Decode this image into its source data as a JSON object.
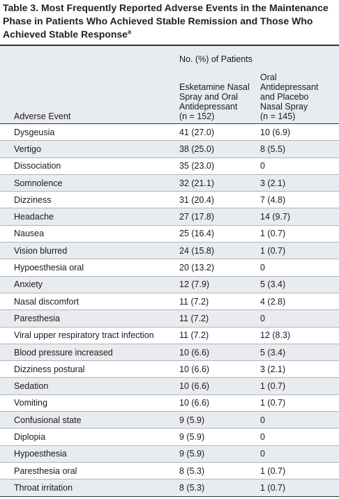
{
  "title": {
    "text": "Table 3. Most Frequently Reported Adverse Events in the Maintenance Phase in Patients Who Achieved Stable Remission and Those Who Achieved Stable Response",
    "superscript": "a"
  },
  "header": {
    "group_label": "No. (%) of Patients",
    "event_col": "Adverse Event",
    "col1_lines": [
      "Esketamine Nasal",
      "Spray and Oral",
      "Antidepressant",
      "(n = 152)"
    ],
    "col2_lines": [
      "Oral",
      "Antidepressant",
      "and Placebo",
      "Nasal Spray",
      "(n = 145)"
    ]
  },
  "rows": [
    {
      "event": "Dysgeusia",
      "esk": "41 (27.0)",
      "plc": "10 (6.9)"
    },
    {
      "event": "Vertigo",
      "esk": "38 (25.0)",
      "plc": "8 (5.5)"
    },
    {
      "event": "Dissociation",
      "esk": "35 (23.0)",
      "plc": "0"
    },
    {
      "event": "Somnolence",
      "esk": "32 (21.1)",
      "plc": "3 (2.1)"
    },
    {
      "event": "Dizziness",
      "esk": "31 (20.4)",
      "plc": "7 (4.8)"
    },
    {
      "event": "Headache",
      "esk": "27 (17.8)",
      "plc": "14 (9.7)"
    },
    {
      "event": "Nausea",
      "esk": "25 (16.4)",
      "plc": "1 (0.7)"
    },
    {
      "event": "Vision blurred",
      "esk": "24 (15.8)",
      "plc": "1 (0.7)"
    },
    {
      "event": "Hypoesthesia oral",
      "esk": "20 (13.2)",
      "plc": "0"
    },
    {
      "event": "Anxiety",
      "esk": "12 (7.9)",
      "plc": "5 (3.4)"
    },
    {
      "event": "Nasal discomfort",
      "esk": "11 (7.2)",
      "plc": "4 (2.8)"
    },
    {
      "event": "Paresthesia",
      "esk": "11 (7.2)",
      "plc": "0"
    },
    {
      "event": "Viral upper respiratory tract infection",
      "esk": "11 (7.2)",
      "plc": "12 (8.3)"
    },
    {
      "event": "Blood pressure increased",
      "esk": "10 (6.6)",
      "plc": "5 (3.4)"
    },
    {
      "event": "Dizziness postural",
      "esk": "10 (6.6)",
      "plc": "3 (2.1)"
    },
    {
      "event": "Sedation",
      "esk": "10 (6.6)",
      "plc": "1 (0.7)"
    },
    {
      "event": "Vomiting",
      "esk": "10 (6.6)",
      "plc": "1 (0.7)"
    },
    {
      "event": "Confusional state",
      "esk": "9 (5.9)",
      "plc": "0"
    },
    {
      "event": "Diplopia",
      "esk": "9 (5.9)",
      "plc": "0"
    },
    {
      "event": "Hypoesthesia",
      "esk": "9 (5.9)",
      "plc": "0"
    },
    {
      "event": "Paresthesia oral",
      "esk": "8 (5.3)",
      "plc": "1 (0.7)"
    },
    {
      "event": "Throat irritation",
      "esk": "8 (5.3)",
      "plc": "1 (0.7)"
    }
  ]
}
